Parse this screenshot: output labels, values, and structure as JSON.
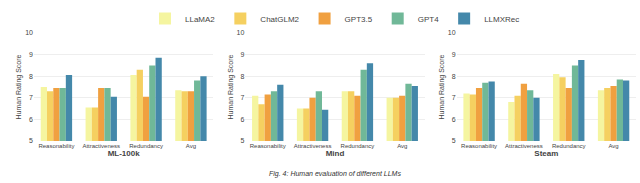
{
  "chart_data": [
    {
      "type": "bar",
      "xlabel": "ML-100k",
      "ylabel": "Human Rating Score",
      "categories": [
        "Reasonability",
        "Attractiveness",
        "Redundancy",
        "Avg"
      ],
      "series": [
        {
          "name": "LLaMA2",
          "color": "#f5f5a0",
          "values": [
            7.5,
            6.55,
            8.05,
            7.35
          ]
        },
        {
          "name": "ChatGLM2",
          "color": "#f5d060",
          "values": [
            7.3,
            6.55,
            8.3,
            7.3
          ]
        },
        {
          "name": "GPT3.5",
          "color": "#f0a040",
          "values": [
            7.45,
            7.45,
            7.05,
            7.3
          ]
        },
        {
          "name": "GPT4",
          "color": "#70b898",
          "values": [
            7.45,
            7.45,
            8.5,
            7.8
          ]
        },
        {
          "name": "LLMXRec",
          "color": "#4488aa",
          "values": [
            8.05,
            7.05,
            8.85,
            8.0
          ]
        }
      ],
      "ylim": [
        5,
        10
      ],
      "yticks": [
        5,
        6,
        7,
        8,
        9,
        10
      ],
      "grid": true,
      "legend": "top"
    },
    {
      "type": "bar",
      "xlabel": "Mind",
      "ylabel": "Human Rating Score",
      "categories": [
        "Reasonability",
        "Attractiveness",
        "Redundancy",
        "Avg"
      ],
      "series": [
        {
          "name": "LLaMA2",
          "color": "#f5f5a0",
          "values": [
            7.1,
            6.5,
            7.3,
            7.0
          ]
        },
        {
          "name": "ChatGLM2",
          "color": "#f5d060",
          "values": [
            6.7,
            6.5,
            7.3,
            7.0
          ]
        },
        {
          "name": "GPT3.5",
          "color": "#f0a040",
          "values": [
            7.15,
            7.0,
            7.1,
            7.1
          ]
        },
        {
          "name": "GPT4",
          "color": "#70b898",
          "values": [
            7.3,
            7.3,
            8.3,
            7.65
          ]
        },
        {
          "name": "LLMXRec",
          "color": "#4488aa",
          "values": [
            7.6,
            6.45,
            8.6,
            7.55
          ]
        }
      ],
      "ylim": [
        5,
        10
      ],
      "yticks": [
        5,
        6,
        7,
        8,
        9,
        10
      ],
      "grid": true,
      "legend": "top",
      "annotations": [
        "Fig. 4: Human evaluation of different LLMs"
      ]
    },
    {
      "type": "bar",
      "xlabel": "Steam",
      "ylabel": "Human Rating Score",
      "categories": [
        "Reasonability",
        "Attractiveness",
        "Redundancy",
        "Avg"
      ],
      "series": [
        {
          "name": "LLaMA2",
          "color": "#f5f5a0",
          "values": [
            7.2,
            6.8,
            8.1,
            7.35
          ]
        },
        {
          "name": "ChatGLM2",
          "color": "#f5d060",
          "values": [
            7.15,
            7.1,
            7.95,
            7.45
          ]
        },
        {
          "name": "GPT3.5",
          "color": "#f0a040",
          "values": [
            7.45,
            7.65,
            7.45,
            7.55
          ]
        },
        {
          "name": "GPT4",
          "color": "#70b898",
          "values": [
            7.7,
            7.35,
            8.5,
            7.85
          ]
        },
        {
          "name": "LLMXRec",
          "color": "#4488aa",
          "values": [
            7.75,
            7.0,
            8.75,
            7.8
          ]
        }
      ],
      "ylim": [
        5,
        10
      ],
      "yticks": [
        5,
        6,
        7,
        8,
        9,
        10
      ],
      "grid": true,
      "legend": "top"
    }
  ]
}
